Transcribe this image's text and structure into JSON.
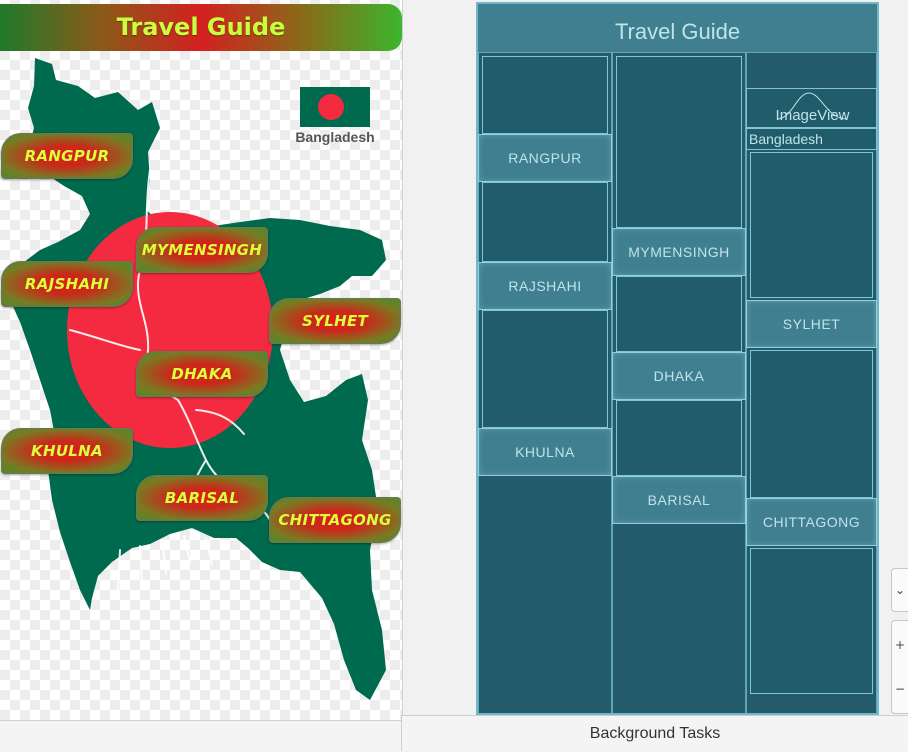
{
  "design": {
    "title": "Travel Guide",
    "flag_label": "Bangladesh",
    "cities": [
      "RANGPUR",
      "MYMENSINGH",
      "RAJSHAHI",
      "SYLHET",
      "DHAKA",
      "KHULNA",
      "BARISAL",
      "CHITTAGONG"
    ]
  },
  "blueprint": {
    "title": "Travel Guide",
    "image_view_label": "ImageView",
    "flag_label": "Bangladesh",
    "cities": [
      "RANGPUR",
      "MYMENSINGH",
      "RAJSHAHI",
      "SYLHET",
      "DHAKA",
      "KHULNA",
      "BARISAL",
      "CHITTAGONG"
    ]
  },
  "status": {
    "background_tasks": "Background Tasks"
  },
  "icons": [
    "chevron-down-icon",
    "plus-icon",
    "minus-icon"
  ],
  "colors": {
    "map_green": "#006a4e",
    "map_red": "#f42a41",
    "title_text": "#c8ff3c",
    "blueprint_bg": "#3b7b8c"
  }
}
